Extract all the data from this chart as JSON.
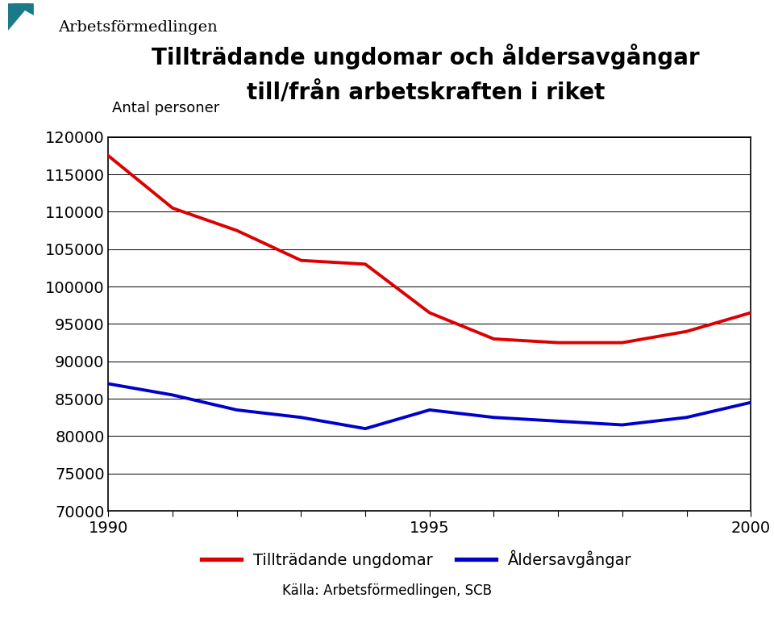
{
  "title_line1": "Tillträdande ungdomar och åldersavgångar",
  "title_line2": "till/från arbetskraften i riket",
  "ylabel": "Antal personer",
  "source": "Källa: Arbetsförmedlingen, SCB",
  "years": [
    1990,
    1991,
    1992,
    1993,
    1994,
    1995,
    1996,
    1997,
    1998,
    1999,
    2000
  ],
  "tillträdande": [
    117500,
    110500,
    107500,
    103500,
    103000,
    96500,
    93000,
    92500,
    92500,
    94000,
    96500
  ],
  "aldersavgangar": [
    87000,
    85500,
    83500,
    82500,
    81000,
    83500,
    82500,
    82000,
    81500,
    82500,
    84500
  ],
  "line1_color": "#dd0000",
  "line2_color": "#0000cc",
  "line_width": 2.8,
  "ylim_min": 70000,
  "ylim_max": 120000,
  "yticks": [
    70000,
    75000,
    80000,
    85000,
    90000,
    95000,
    100000,
    105000,
    110000,
    115000,
    120000
  ],
  "xticks": [
    1990,
    1991,
    1992,
    1993,
    1994,
    1995,
    1996,
    1997,
    1998,
    1999,
    2000
  ],
  "xtick_labels_show": [
    1990,
    1995,
    2000
  ],
  "legend_label1": "Tillträdande ungdomar",
  "legend_label2": "Åldersavgångar",
  "background_color": "#ffffff",
  "title_fontsize": 20,
  "tick_fontsize": 14,
  "ylabel_fontsize": 13,
  "legend_fontsize": 14,
  "source_fontsize": 12,
  "logo_fontsize": 14
}
